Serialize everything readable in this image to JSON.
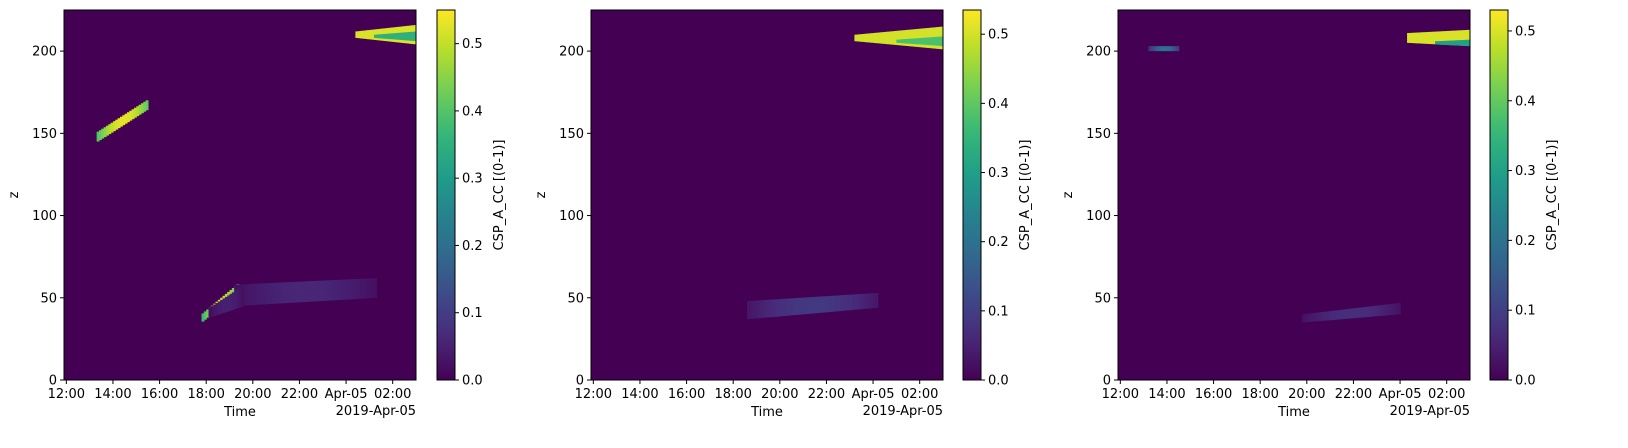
{
  "colormap": "viridis",
  "viridis_stops": [
    "#440154",
    "#482878",
    "#3e4989",
    "#31688e",
    "#26828e",
    "#1f9e89",
    "#35b779",
    "#6ece58",
    "#b5de2b",
    "#fde725"
  ],
  "chart_data": [
    {
      "type": "heatmap",
      "xlabel": "Time",
      "ylabel": "z",
      "colorbar_label": "CSP_A_CC [(0-1)]",
      "x_ticks": [
        "12:00",
        "14:00",
        "16:00",
        "18:00",
        "20:00",
        "22:00",
        "Apr-05",
        "02:00"
      ],
      "x_tick_hours": [
        12,
        14,
        16,
        18,
        20,
        22,
        24,
        26
      ],
      "x_offset_label": "2019-Apr-05",
      "xlim_hours": [
        11.9,
        27.0
      ],
      "y_ticks": [
        0,
        50,
        100,
        150,
        200
      ],
      "ylim": [
        0,
        225
      ],
      "vmin": 0.0,
      "vmax": 0.55,
      "colorbar_ticks": [
        0.0,
        0.1,
        0.2,
        0.3,
        0.4,
        0.5
      ],
      "colorbar_tick_labels": [
        "0.0",
        "0.1",
        "0.2",
        "0.3",
        "0.4",
        "0.5"
      ],
      "features": [
        {
          "kind": "band",
          "t0": 13.3,
          "t1": 15.5,
          "z0": 148,
          "z1": 168,
          "thickness": 6,
          "value": 0.53
        },
        {
          "kind": "band",
          "t0": 17.8,
          "t1": 19.4,
          "z0": 38,
          "z1": 57,
          "thickness": 5,
          "value": 0.5
        },
        {
          "kind": "blob",
          "t0": 19.2,
          "t1": 25.3,
          "zb0": 45,
          "zb1": 50,
          "zt0": 58,
          "zt1": 62,
          "value": 0.06
        },
        {
          "kind": "blob",
          "t0": 18.1,
          "t1": 19.6,
          "zb0": 38,
          "zb1": 45,
          "zt0": 44,
          "zt1": 58,
          "value": 0.05
        },
        {
          "kind": "wedge",
          "t0": 24.4,
          "t1": 27.0,
          "z_mid": 210,
          "half_start": 2,
          "half_end": 6,
          "value": 0.52
        },
        {
          "kind": "wedge",
          "t0": 25.2,
          "t1": 27.0,
          "z_mid": 209,
          "half_start": 1,
          "half_end": 3,
          "value": 0.35
        }
      ]
    },
    {
      "type": "heatmap",
      "xlabel": "Time",
      "ylabel": "z",
      "colorbar_label": "CSP_A_CC [(0-1)]",
      "x_ticks": [
        "12:00",
        "14:00",
        "16:00",
        "18:00",
        "20:00",
        "22:00",
        "Apr-05",
        "02:00"
      ],
      "x_tick_hours": [
        12,
        14,
        16,
        18,
        20,
        22,
        24,
        26
      ],
      "x_offset_label": "2019-Apr-05",
      "xlim_hours": [
        11.9,
        27.0
      ],
      "y_ticks": [
        0,
        50,
        100,
        150,
        200
      ],
      "ylim": [
        0,
        225
      ],
      "vmin": 0.0,
      "vmax": 0.535,
      "colorbar_ticks": [
        0.0,
        0.1,
        0.2,
        0.3,
        0.4,
        0.5
      ],
      "colorbar_tick_labels": [
        "0.0",
        "0.1",
        "0.2",
        "0.3",
        "0.4",
        "0.5"
      ],
      "features": [
        {
          "kind": "blob",
          "t0": 18.6,
          "t1": 24.2,
          "zb0": 37,
          "zb1": 44,
          "zt0": 48,
          "zt1": 53,
          "value": 0.09
        },
        {
          "kind": "wedge",
          "t0": 23.2,
          "t1": 27.0,
          "z_mid": 208,
          "half_start": 2,
          "half_end": 7,
          "value": 0.5
        },
        {
          "kind": "wedge",
          "t0": 25.0,
          "t1": 27.0,
          "z_mid": 206,
          "half_start": 1,
          "half_end": 3,
          "value": 0.38
        }
      ]
    },
    {
      "type": "heatmap",
      "xlabel": "Time",
      "ylabel": "z",
      "colorbar_label": "CSP_A_CC [(0-1)]",
      "x_ticks": [
        "12:00",
        "14:00",
        "16:00",
        "18:00",
        "20:00",
        "22:00",
        "Apr-05",
        "02:00"
      ],
      "x_tick_hours": [
        12,
        14,
        16,
        18,
        20,
        22,
        24,
        26
      ],
      "x_offset_label": "2019-Apr-05",
      "xlim_hours": [
        11.9,
        27.0
      ],
      "y_ticks": [
        0,
        50,
        100,
        150,
        200
      ],
      "ylim": [
        0,
        225
      ],
      "vmin": 0.0,
      "vmax": 0.53,
      "colorbar_ticks": [
        0.0,
        0.1,
        0.2,
        0.3,
        0.4,
        0.5
      ],
      "colorbar_tick_labels": [
        "0.0",
        "0.1",
        "0.2",
        "0.3",
        "0.4",
        "0.5"
      ],
      "features": [
        {
          "kind": "blob",
          "t0": 13.2,
          "t1": 14.5,
          "zb0": 200,
          "zb1": 200,
          "zt0": 203,
          "zt1": 203,
          "value": 0.2
        },
        {
          "kind": "blob",
          "t0": 19.8,
          "t1": 24.0,
          "zb0": 35,
          "zb1": 40,
          "zt0": 40,
          "zt1": 47,
          "value": 0.07
        },
        {
          "kind": "wedge",
          "t0": 24.3,
          "t1": 27.0,
          "z_mid": 208,
          "half_start": 3,
          "half_end": 5,
          "value": 0.5
        },
        {
          "kind": "wedge",
          "t0": 25.5,
          "t1": 27.0,
          "z_mid": 205,
          "half_start": 1,
          "half_end": 2,
          "value": 0.3
        }
      ]
    }
  ]
}
